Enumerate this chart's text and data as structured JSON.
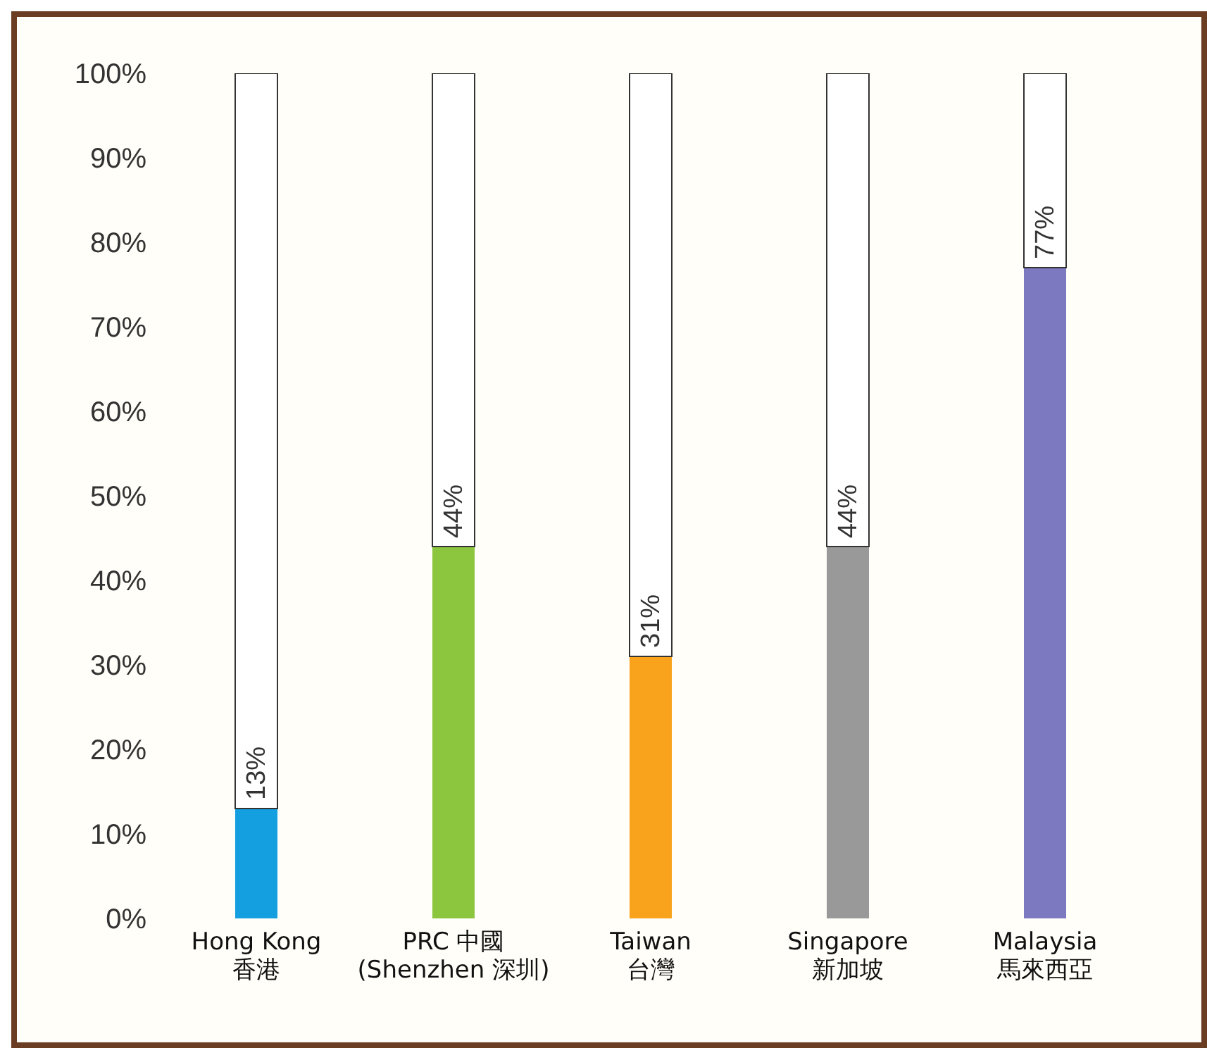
{
  "chart_data": {
    "type": "bar",
    "stacked": true,
    "categories": [
      "Hong Kong\n香港",
      "PRC  中國\n(Shenzhen 深圳)",
      "Taiwan\n台灣",
      "Singapore\n新加坡",
      "Malaysia\n馬來西亞"
    ],
    "series": [
      {
        "colors": [
          "#139fe0",
          "#8cc63f",
          "#f8a31b",
          "#999999",
          "#7c79c0"
        ],
        "values": [
          13,
          44,
          31,
          44,
          77
        ],
        "value_labels": [
          "13%",
          "44%",
          "31%",
          "44%",
          "77%"
        ]
      },
      {
        "color": "#ffffff",
        "values": [
          87,
          56,
          69,
          56,
          23
        ]
      }
    ],
    "ylim": [
      0,
      100
    ],
    "yticks": [
      {
        "value": 0,
        "label": "0%"
      },
      {
        "value": 10,
        "label": "10%"
      },
      {
        "value": 20,
        "label": "20%"
      },
      {
        "value": 30,
        "label": "30%"
      },
      {
        "value": 40,
        "label": "40%"
      },
      {
        "value": 50,
        "label": "50%"
      },
      {
        "value": 60,
        "label": "60%"
      },
      {
        "value": 70,
        "label": "70%"
      },
      {
        "value": 80,
        "label": "80%"
      },
      {
        "value": 90,
        "label": "90%"
      },
      {
        "value": 100,
        "label": "100%"
      }
    ],
    "grid": false,
    "legend": false
  }
}
